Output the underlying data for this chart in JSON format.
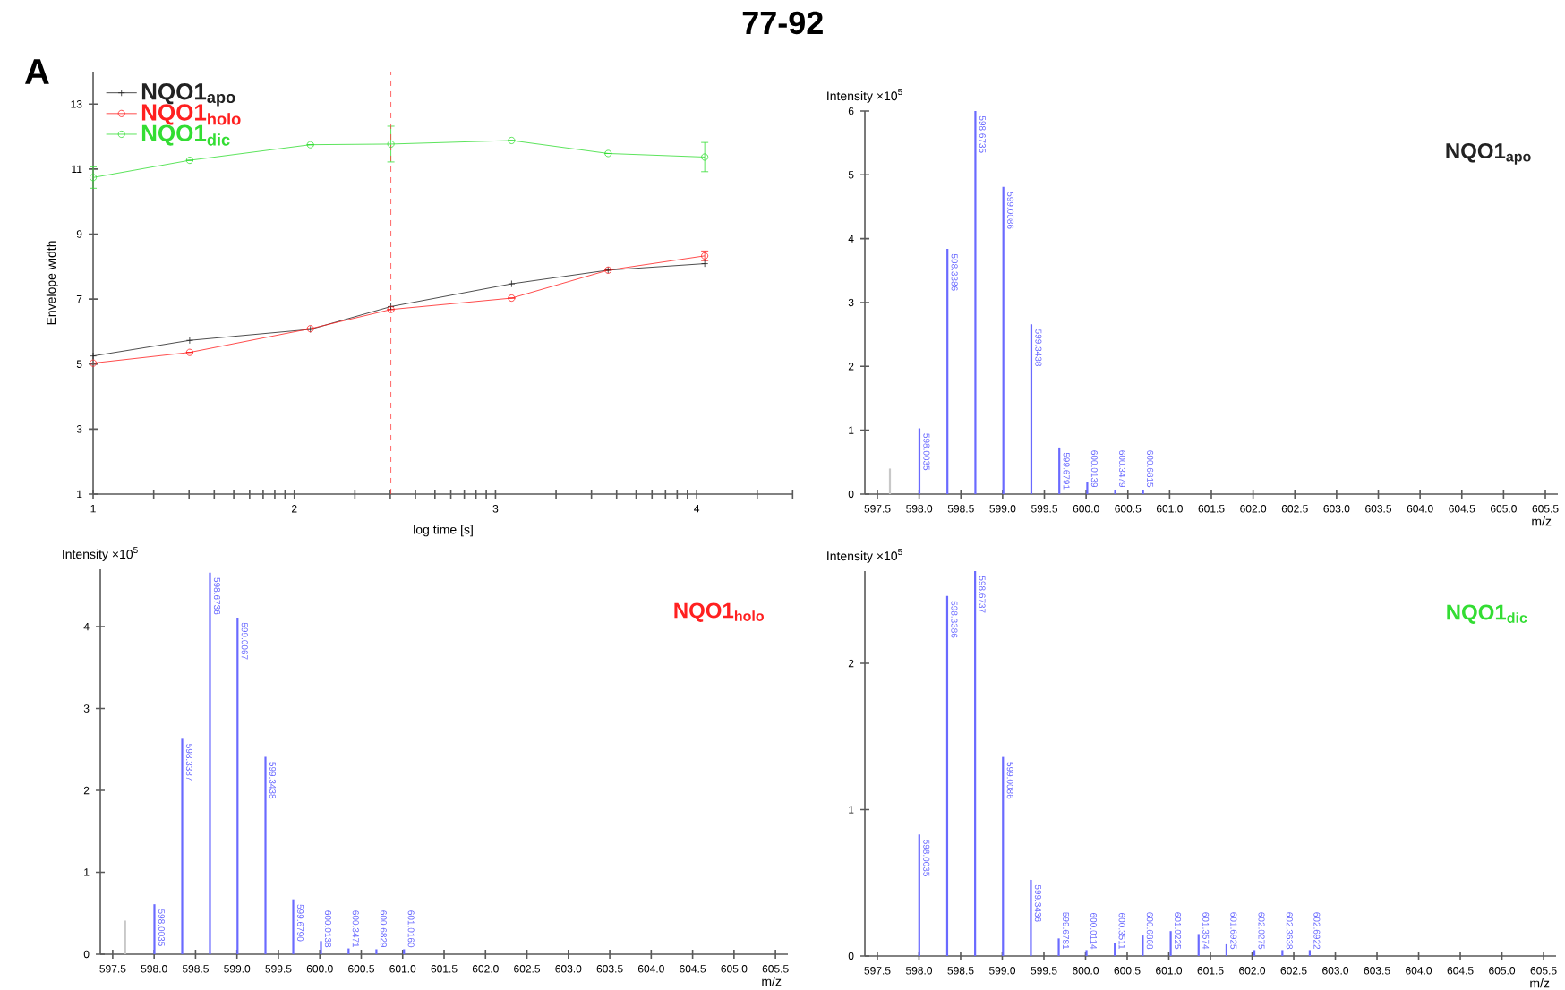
{
  "chart_data": [
    {
      "type": "line",
      "title": "77-92",
      "annotations": [
        "A"
      ],
      "xlabel": "log time [s]",
      "ylabel": "Envelope width",
      "xlim": [
        1,
        4.48
      ],
      "ylim": [
        1,
        14
      ],
      "xticks": [
        1,
        {
          "value": 1.301,
          "label": null
        },
        {
          "value": 1.477,
          "label": null
        },
        {
          "value": 1.602,
          "label": null
        },
        {
          "value": 1.699,
          "label": null
        },
        {
          "value": 1.778,
          "label": null
        },
        {
          "value": 1.845,
          "label": null
        },
        {
          "value": 1.903,
          "label": null
        },
        {
          "value": 1.954,
          "label": null
        },
        2,
        {
          "value": 2.301,
          "label": null
        },
        {
          "value": 2.477,
          "label": null
        },
        {
          "value": 2.602,
          "label": null
        },
        {
          "value": 2.699,
          "label": null
        },
        {
          "value": 2.778,
          "label": null
        },
        {
          "value": 2.845,
          "label": null
        },
        {
          "value": 2.903,
          "label": null
        },
        {
          "value": 2.954,
          "label": null
        },
        3,
        {
          "value": 3.301,
          "label": null
        },
        {
          "value": 3.477,
          "label": null
        },
        {
          "value": 3.602,
          "label": null
        },
        {
          "value": 3.699,
          "label": null
        },
        {
          "value": 3.778,
          "label": null
        },
        {
          "value": 3.845,
          "label": null
        },
        {
          "value": 3.903,
          "label": null
        },
        {
          "value": 3.954,
          "label": null
        },
        4,
        {
          "value": 4.301,
          "label": null
        },
        {
          "value": 4.477,
          "label": null
        }
      ],
      "yticks": [
        1,
        3,
        5,
        7,
        9,
        11,
        13
      ],
      "legend": "top left",
      "ref_lines": [
        {
          "axis": "x",
          "value": 2.48,
          "color": "#ff4040",
          "line_style": "dashed"
        }
      ],
      "x": [
        1,
        1.48,
        2.08,
        2.48,
        3.08,
        3.56,
        4.04
      ],
      "series": [
        {
          "name": "NQO1$_{apo}$",
          "color": "#222222",
          "marker": "cross",
          "values": [
            5.25,
            5.73,
            6.07,
            6.77,
            7.47,
            7.89,
            8.09
          ]
        },
        {
          "name": "NQO1$_{holo}$",
          "color": "#ff2020",
          "marker": "circle",
          "values": [
            5.03,
            5.36,
            6.09,
            6.68,
            7.03,
            7.89,
            8.33
          ],
          "errors": [
            null,
            null,
            null,
            null,
            null,
            null,
            0.15
          ]
        },
        {
          "name": "NQO1$_{dic}$",
          "color": "#33dd33",
          "marker": "circle",
          "values": [
            10.74,
            11.27,
            11.75,
            11.77,
            11.88,
            11.48,
            11.37
          ],
          "errors": [
            0.33,
            null,
            null,
            0.55,
            null,
            null,
            0.45
          ]
        }
      ]
    },
    {
      "type": "bar",
      "title": "NQO1$_{apo}$",
      "xlabel": "m/z",
      "ylabel": "Intensity ×10$^{5}$",
      "xlim": [
        597.35,
        605.65
      ],
      "ylim": [
        0,
        6
      ],
      "yticks": [
        0,
        1,
        2,
        3,
        4,
        5,
        6
      ],
      "xticks": [
        597.5,
        {
          "value": 598,
          "label": "598.0"
        },
        598.5,
        {
          "value": 599,
          "label": "599.0"
        },
        599.5,
        {
          "value": 600,
          "label": "600.0"
        },
        600.5,
        {
          "value": 601,
          "label": "601.0"
        },
        601.5,
        {
          "value": 602,
          "label": "602.0"
        },
        602.5,
        {
          "value": 603,
          "label": "603.0"
        },
        603.5,
        {
          "value": 604,
          "label": "604.0"
        },
        604.5,
        {
          "value": 605,
          "label": "605.0"
        },
        605.5
      ],
      "series": [
        {
          "color": "#6a6aff",
          "x": [
            598.0035,
            598.3386,
            598.6735,
            599.0086,
            599.3438,
            599.6791,
            600.0139,
            600.3479,
            600.6815
          ],
          "values": [
            1.03,
            3.84,
            6.0,
            4.81,
            2.66,
            0.73,
            0.19,
            0.07,
            0.07
          ]
        },
        {
          "color": "#c8c8c8",
          "x": [
            597.65
          ],
          "values": [
            0.4
          ]
        }
      ],
      "annotations": [
        {
          "text": "598.0035",
          "x": 598.0035,
          "y": 1.03
        },
        {
          "text": "598.3386",
          "x": 598.3386,
          "y": 3.84
        },
        {
          "text": "598.6735",
          "x": 598.6735,
          "y": 6.0
        },
        {
          "text": "599.0086",
          "x": 599.0086,
          "y": 4.81
        },
        {
          "text": "599.3438",
          "x": 599.3438,
          "y": 2.66
        },
        {
          "text": "599.6791",
          "x": 599.6791,
          "y": 0.73
        },
        {
          "text": "600.0139",
          "x": 600.0139,
          "y": 0.19
        },
        {
          "text": "600.3479",
          "x": 600.3479,
          "y": 0.07
        },
        {
          "text": "600.6815",
          "x": 600.6815,
          "y": 0.07
        }
      ]
    },
    {
      "type": "bar",
      "title": "NQO1$_{holo}$",
      "xlabel": "m/z",
      "ylabel": "Intensity ×10$^{5}$",
      "xlim": [
        597.35,
        605.65
      ],
      "ylim": [
        0,
        4.7
      ],
      "yticks": [
        0,
        1,
        2,
        3,
        4
      ],
      "xticks": [
        597.5,
        {
          "value": 598,
          "label": "598.0"
        },
        598.5,
        {
          "value": 599,
          "label": "599.0"
        },
        599.5,
        {
          "value": 600,
          "label": "600.0"
        },
        600.5,
        {
          "value": 601,
          "label": "601.0"
        },
        601.5,
        {
          "value": 602,
          "label": "602.0"
        },
        602.5,
        {
          "value": 603,
          "label": "603.0"
        },
        603.5,
        {
          "value": 604,
          "label": "604.0"
        },
        604.5,
        {
          "value": 605,
          "label": "605.0"
        },
        605.5
      ],
      "series": [
        {
          "color": "#6a6aff",
          "x": [
            598.0035,
            598.3387,
            598.6736,
            599.0067,
            599.3438,
            599.679,
            600.0138,
            600.3471,
            600.6829,
            601.016
          ],
          "values": [
            0.61,
            2.63,
            4.66,
            4.11,
            2.41,
            0.67,
            0.16,
            0.07,
            0.06,
            0.06
          ]
        },
        {
          "color": "#c8c8c8",
          "x": [
            597.65
          ],
          "values": [
            0.41
          ]
        }
      ],
      "annotations": [
        {
          "text": "598.0035",
          "x": 598.0035,
          "y": 0.61
        },
        {
          "text": "598.3387",
          "x": 598.3387,
          "y": 2.63
        },
        {
          "text": "598.6736",
          "x": 598.6736,
          "y": 4.66
        },
        {
          "text": "599.0067",
          "x": 599.0067,
          "y": 4.11
        },
        {
          "text": "599.3438",
          "x": 599.3438,
          "y": 2.41
        },
        {
          "text": "599.6790",
          "x": 599.679,
          "y": 0.67
        },
        {
          "text": "600.0138",
          "x": 600.0138,
          "y": 0.16
        },
        {
          "text": "600.3471",
          "x": 600.3471,
          "y": 0.07
        },
        {
          "text": "600.6829",
          "x": 600.6829,
          "y": 0.06
        },
        {
          "text": "601.0160",
          "x": 601.016,
          "y": 0.06
        }
      ]
    },
    {
      "type": "bar",
      "title": "NQO1$_{dic}$",
      "xlabel": "m/z",
      "ylabel": "Intensity ×10$^{5}$",
      "xlim": [
        597.35,
        605.65
      ],
      "ylim": [
        0,
        2.63
      ],
      "yticks": [
        0,
        1,
        2
      ],
      "xticks": [
        597.5,
        {
          "value": 598,
          "label": "598.0"
        },
        598.5,
        {
          "value": 599,
          "label": "599.0"
        },
        599.5,
        {
          "value": 600,
          "label": "600.0"
        },
        600.5,
        {
          "value": 601,
          "label": "601.0"
        },
        601.5,
        {
          "value": 602,
          "label": "602.0"
        },
        602.5,
        {
          "value": 603,
          "label": "603.0"
        },
        603.5,
        {
          "value": 604,
          "label": "604.0"
        },
        604.5,
        {
          "value": 605,
          "label": "605.0"
        },
        605.5
      ],
      "series": [
        {
          "color": "#6a6aff",
          "x": [
            598.0035,
            598.3386,
            598.6737,
            599.0086,
            599.3436,
            599.6781,
            600.0114,
            600.3511,
            600.6868,
            601.0225,
            601.3574,
            601.6925,
            602.0275,
            602.3638,
            602.6922
          ],
          "values": [
            0.83,
            2.46,
            2.63,
            1.36,
            0.52,
            0.12,
            0.04,
            0.09,
            0.14,
            0.17,
            0.15,
            0.08,
            0.04,
            0.04,
            0.04
          ]
        }
      ],
      "annotations": [
        {
          "text": "598.0035",
          "x": 598.0035,
          "y": 0.83
        },
        {
          "text": "598.3386",
          "x": 598.3386,
          "y": 2.46
        },
        {
          "text": "598.6737",
          "x": 598.6737,
          "y": 2.63
        },
        {
          "text": "599.0086",
          "x": 599.0086,
          "y": 1.36
        },
        {
          "text": "599.3436",
          "x": 599.3436,
          "y": 0.52
        },
        {
          "text": "599.6781",
          "x": 599.6781,
          "y": 0.12
        },
        {
          "text": "600.0114",
          "x": 600.0114,
          "y": 0.04
        },
        {
          "text": "600.3511",
          "x": 600.3511,
          "y": 0.09
        },
        {
          "text": "600.6868",
          "x": 600.6868,
          "y": 0.14
        },
        {
          "text": "601.0225",
          "x": 601.0225,
          "y": 0.17
        },
        {
          "text": "601.3574",
          "x": 601.3574,
          "y": 0.15
        },
        {
          "text": "601.6925",
          "x": 601.6925,
          "y": 0.08
        },
        {
          "text": "602.0275",
          "x": 602.0275,
          "y": 0.04
        },
        {
          "text": "602.3638",
          "x": 602.3638,
          "y": 0.04
        },
        {
          "text": "602.6922",
          "x": 602.6922,
          "y": 0.04
        }
      ]
    }
  ]
}
